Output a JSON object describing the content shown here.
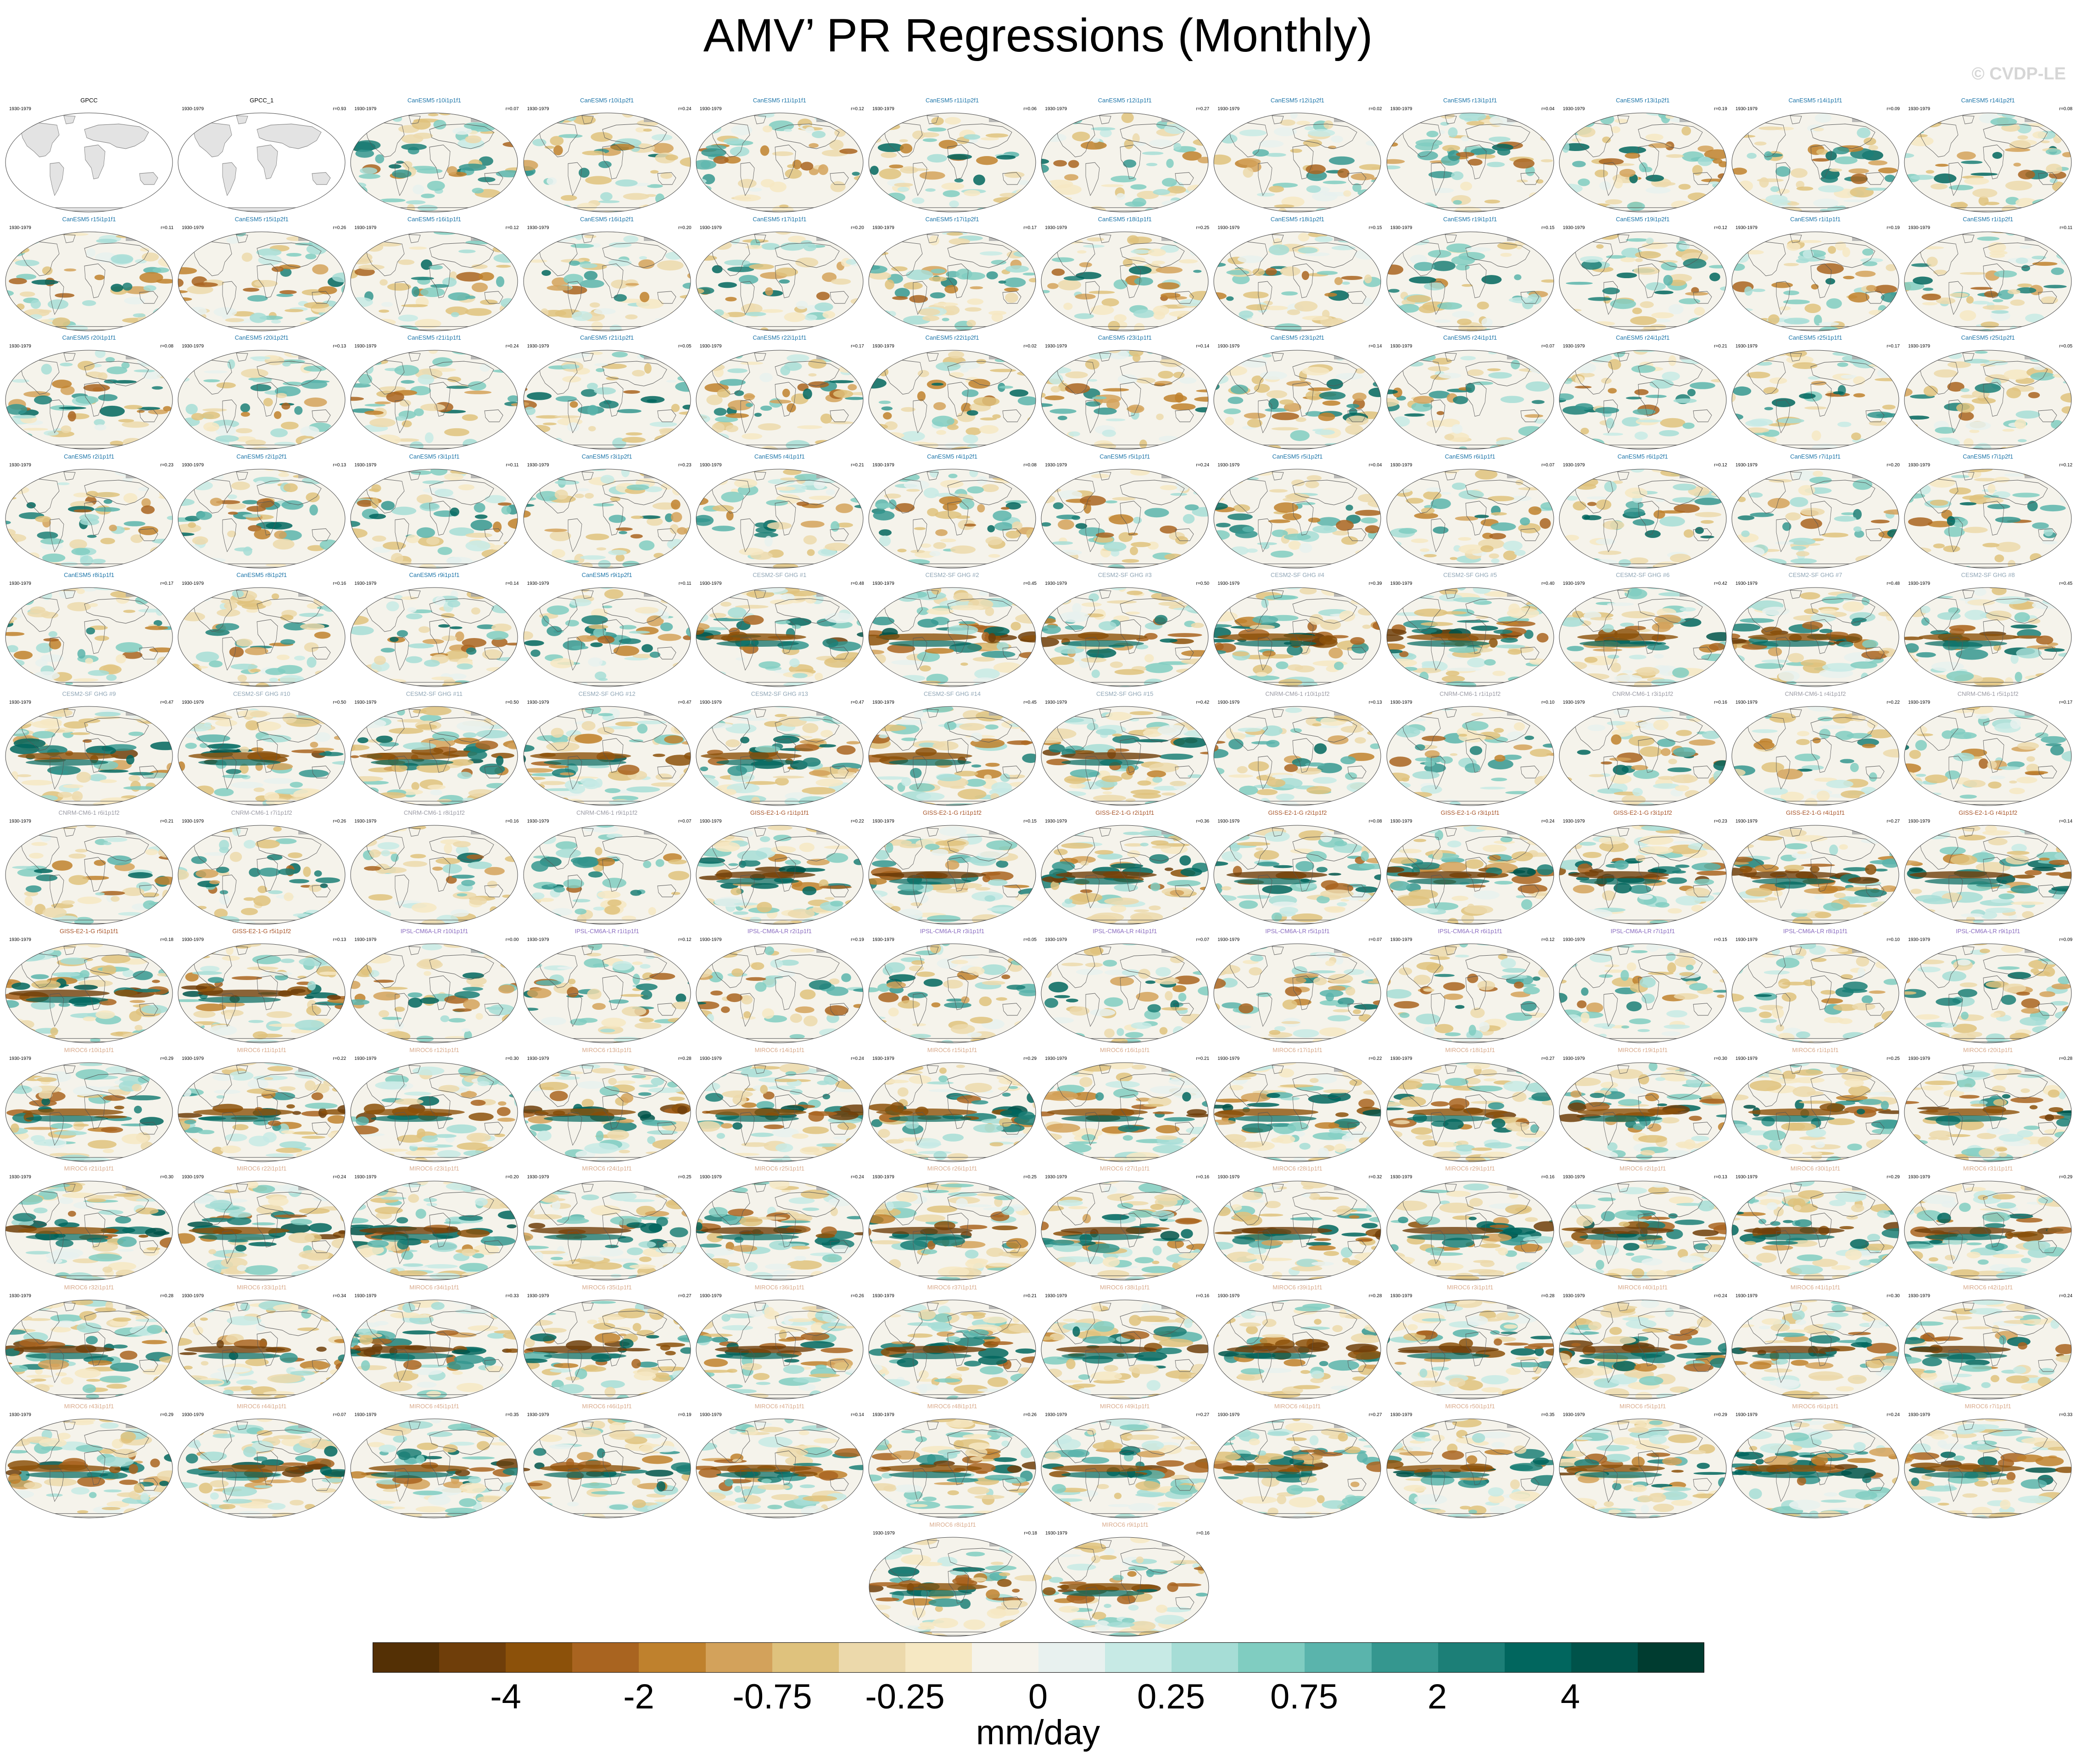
{
  "figure": {
    "title": "AMV’ PR Regressions (Monthly)",
    "watermark": "© CVDP-LE",
    "units": "mm/day",
    "colorbar_labels": [
      "-4",
      "-2",
      "-0.75",
      "-0.25",
      "0",
      "0.25",
      "0.75",
      "2",
      "4"
    ],
    "colorbar_colors": [
      "#543005",
      "#6f3e0a",
      "#8c510a",
      "#a96420",
      "#bf812d",
      "#d3a25b",
      "#dfc27d",
      "#ecd9ab",
      "#f6e8c3",
      "#f5f3eb",
      "#e8f1ef",
      "#c7eae5",
      "#a6ddd6",
      "#80cdc1",
      "#5ab4ac",
      "#35978f",
      "#1c7f77",
      "#01665e",
      "#00534a",
      "#003c30"
    ]
  },
  "colors": {
    "CanESM5": "#1b74a8",
    "CESM2": "#8fa5b5",
    "CNRM": "#9a9aa4",
    "GISS": "#a8552a",
    "IPSL": "#8a6cc0",
    "MIROC6": "#d8a98a",
    "OBS": "#000000"
  },
  "panels": [
    {
      "t": "GPCC",
      "y": "1930-1979",
      "c": "",
      "g": "OBS",
      "m": "obs"
    },
    {
      "t": "GPCC_1",
      "y": "1930-1979",
      "c": "r=0.93",
      "g": "OBS",
      "m": "obs"
    },
    {
      "t": "CanESM5 r10i1p1f1",
      "y": "1930-1979",
      "c": "r=0.07",
      "g": "CanESM5",
      "m": "model"
    },
    {
      "t": "CanESM5 r10i1p2f1",
      "y": "1930-1979",
      "c": "r=0.24",
      "g": "CanESM5",
      "m": "model"
    },
    {
      "t": "CanESM5 r11i1p1f1",
      "y": "1930-1979",
      "c": "r=0.12",
      "g": "CanESM5",
      "m": "model"
    },
    {
      "t": "CanESM5 r11i1p2f1",
      "y": "1930-1979",
      "c": "r=0.06",
      "g": "CanESM5",
      "m": "model"
    },
    {
      "t": "CanESM5 r12i1p1f1",
      "y": "1930-1979",
      "c": "r=0.27",
      "g": "CanESM5",
      "m": "model"
    },
    {
      "t": "CanESM5 r12i1p2f1",
      "y": "1930-1979",
      "c": "r=0.02",
      "g": "CanESM5",
      "m": "model"
    },
    {
      "t": "CanESM5 r13i1p1f1",
      "y": "1930-1979",
      "c": "r=0.04",
      "g": "CanESM5",
      "m": "model"
    },
    {
      "t": "CanESM5 r13i1p2f1",
      "y": "1930-1979",
      "c": "r=0.19",
      "g": "CanESM5",
      "m": "model"
    },
    {
      "t": "CanESM5 r14i1p1f1",
      "y": "1930-1979",
      "c": "r=0.09",
      "g": "CanESM5",
      "m": "model"
    },
    {
      "t": "CanESM5 r14i1p2f1",
      "y": "1930-1979",
      "c": "r=0.08",
      "g": "CanESM5",
      "m": "model"
    },
    {
      "t": "CanESM5 r15i1p1f1",
      "y": "1930-1979",
      "c": "r=0.11",
      "g": "CanESM5",
      "m": "model"
    },
    {
      "t": "CanESM5 r15i1p2f1",
      "y": "1930-1979",
      "c": "r=0.26",
      "g": "CanESM5",
      "m": "model"
    },
    {
      "t": "CanESM5 r16i1p1f1",
      "y": "1930-1979",
      "c": "r=0.12",
      "g": "CanESM5",
      "m": "model"
    },
    {
      "t": "CanESM5 r16i1p2f1",
      "y": "1930-1979",
      "c": "r=0.20",
      "g": "CanESM5",
      "m": "model"
    },
    {
      "t": "CanESM5 r17i1p1f1",
      "y": "1930-1979",
      "c": "r=0.20",
      "g": "CanESM5",
      "m": "model"
    },
    {
      "t": "CanESM5 r17i1p2f1",
      "y": "1930-1979",
      "c": "r=0.17",
      "g": "CanESM5",
      "m": "model"
    },
    {
      "t": "CanESM5 r18i1p1f1",
      "y": "1930-1979",
      "c": "r=0.25",
      "g": "CanESM5",
      "m": "model"
    },
    {
      "t": "CanESM5 r18i1p2f1",
      "y": "1930-1979",
      "c": "r=0.15",
      "g": "CanESM5",
      "m": "model"
    },
    {
      "t": "CanESM5 r19i1p1f1",
      "y": "1930-1979",
      "c": "r=0.15",
      "g": "CanESM5",
      "m": "model"
    },
    {
      "t": "CanESM5 r19i1p2f1",
      "y": "1930-1979",
      "c": "r=0.12",
      "g": "CanESM5",
      "m": "model"
    },
    {
      "t": "CanESM5 r1i1p1f1",
      "y": "1930-1979",
      "c": "r=0.19",
      "g": "CanESM5",
      "m": "model"
    },
    {
      "t": "CanESM5 r1i1p2f1",
      "y": "1930-1979",
      "c": "r=0.11",
      "g": "CanESM5",
      "m": "model"
    },
    {
      "t": "CanESM5 r20i1p1f1",
      "y": "1930-1979",
      "c": "r=0.08",
      "g": "CanESM5",
      "m": "model"
    },
    {
      "t": "CanESM5 r20i1p2f1",
      "y": "1930-1979",
      "c": "r=0.13",
      "g": "CanESM5",
      "m": "model"
    },
    {
      "t": "CanESM5 r21i1p1f1",
      "y": "1930-1979",
      "c": "r=0.24",
      "g": "CanESM5",
      "m": "model"
    },
    {
      "t": "CanESM5 r21i1p2f1",
      "y": "1930-1979",
      "c": "r=0.05",
      "g": "CanESM5",
      "m": "model"
    },
    {
      "t": "CanESM5 r22i1p1f1",
      "y": "1930-1979",
      "c": "r=0.17",
      "g": "CanESM5",
      "m": "model"
    },
    {
      "t": "CanESM5 r22i1p2f1",
      "y": "1930-1979",
      "c": "r=0.02",
      "g": "CanESM5",
      "m": "model"
    },
    {
      "t": "CanESM5 r23i1p1f1",
      "y": "1930-1979",
      "c": "r=0.14",
      "g": "CanESM5",
      "m": "model"
    },
    {
      "t": "CanESM5 r23i1p2f1",
      "y": "1930-1979",
      "c": "r=0.14",
      "g": "CanESM5",
      "m": "model"
    },
    {
      "t": "CanESM5 r24i1p1f1",
      "y": "1930-1979",
      "c": "r=0.07",
      "g": "CanESM5",
      "m": "model"
    },
    {
      "t": "CanESM5 r24i1p2f1",
      "y": "1930-1979",
      "c": "r=0.21",
      "g": "CanESM5",
      "m": "model"
    },
    {
      "t": "CanESM5 r25i1p1f1",
      "y": "1930-1979",
      "c": "r=0.17",
      "g": "CanESM5",
      "m": "model"
    },
    {
      "t": "CanESM5 r25i1p2f1",
      "y": "1930-1979",
      "c": "r=0.05",
      "g": "CanESM5",
      "m": "model"
    },
    {
      "t": "CanESM5 r2i1p1f1",
      "y": "1930-1979",
      "c": "r=0.23",
      "g": "CanESM5",
      "m": "model"
    },
    {
      "t": "CanESM5 r2i1p2f1",
      "y": "1930-1979",
      "c": "r=0.13",
      "g": "CanESM5",
      "m": "model"
    },
    {
      "t": "CanESM5 r3i1p1f1",
      "y": "1930-1979",
      "c": "r=0.11",
      "g": "CanESM5",
      "m": "model"
    },
    {
      "t": "CanESM5 r3i1p2f1",
      "y": "1930-1979",
      "c": "r=0.23",
      "g": "CanESM5",
      "m": "model"
    },
    {
      "t": "CanESM5 r4i1p1f1",
      "y": "1930-1979",
      "c": "r=0.21",
      "g": "CanESM5",
      "m": "model"
    },
    {
      "t": "CanESM5 r4i1p2f1",
      "y": "1930-1979",
      "c": "r=0.08",
      "g": "CanESM5",
      "m": "model"
    },
    {
      "t": "CanESM5 r5i1p1f1",
      "y": "1930-1979",
      "c": "r=0.24",
      "g": "CanESM5",
      "m": "model"
    },
    {
      "t": "CanESM5 r5i1p2f1",
      "y": "1930-1979",
      "c": "r=0.04",
      "g": "CanESM5",
      "m": "model"
    },
    {
      "t": "CanESM5 r6i1p1f1",
      "y": "1930-1979",
      "c": "r=0.07",
      "g": "CanESM5",
      "m": "model"
    },
    {
      "t": "CanESM5 r6i1p2f1",
      "y": "1930-1979",
      "c": "r=0.12",
      "g": "CanESM5",
      "m": "model"
    },
    {
      "t": "CanESM5 r7i1p1f1",
      "y": "1930-1979",
      "c": "r=0.20",
      "g": "CanESM5",
      "m": "model"
    },
    {
      "t": "CanESM5 r7i1p2f1",
      "y": "1930-1979",
      "c": "r=0.12",
      "g": "CanESM5",
      "m": "model"
    },
    {
      "t": "CanESM5 r8i1p1f1",
      "y": "1930-1979",
      "c": "r=0.17",
      "g": "CanESM5",
      "m": "model"
    },
    {
      "t": "CanESM5 r8i1p2f1",
      "y": "1930-1979",
      "c": "r=0.16",
      "g": "CanESM5",
      "m": "model"
    },
    {
      "t": "CanESM5 r9i1p1f1",
      "y": "1930-1979",
      "c": "r=0.14",
      "g": "CanESM5",
      "m": "model"
    },
    {
      "t": "CanESM5 r9i1p2f1",
      "y": "1930-1979",
      "c": "r=0.11",
      "g": "CanESM5",
      "m": "model"
    },
    {
      "t": "CESM2-SF GHG #1",
      "y": "1930-1979",
      "c": "r=0.48",
      "g": "CESM2",
      "m": "strong"
    },
    {
      "t": "CESM2-SF GHG #2",
      "y": "1930-1979",
      "c": "r=0.45",
      "g": "CESM2",
      "m": "strong"
    },
    {
      "t": "CESM2-SF GHG #3",
      "y": "1930-1979",
      "c": "r=0.50",
      "g": "CESM2",
      "m": "strong"
    },
    {
      "t": "CESM2-SF GHG #4",
      "y": "1930-1979",
      "c": "r=0.39",
      "g": "CESM2",
      "m": "strong"
    },
    {
      "t": "CESM2-SF GHG #5",
      "y": "1930-1979",
      "c": "r=0.40",
      "g": "CESM2",
      "m": "strong"
    },
    {
      "t": "CESM2-SF GHG #6",
      "y": "1930-1979",
      "c": "r=0.42",
      "g": "CESM2",
      "m": "strong"
    },
    {
      "t": "CESM2-SF GHG #7",
      "y": "1930-1979",
      "c": "r=0.48",
      "g": "CESM2",
      "m": "strong"
    },
    {
      "t": "CESM2-SF GHG #8",
      "y": "1930-1979",
      "c": "r=0.45",
      "g": "CESM2",
      "m": "strong"
    },
    {
      "t": "CESM2-SF GHG #9",
      "y": "1930-1979",
      "c": "r=0.47",
      "g": "CESM2",
      "m": "strong"
    },
    {
      "t": "CESM2-SF GHG #10",
      "y": "1930-1979",
      "c": "r=0.50",
      "g": "CESM2",
      "m": "strong"
    },
    {
      "t": "CESM2-SF GHG #11",
      "y": "1930-1979",
      "c": "r=0.50",
      "g": "CESM2",
      "m": "strong"
    },
    {
      "t": "CESM2-SF GHG #12",
      "y": "1930-1979",
      "c": "r=0.47",
      "g": "CESM2",
      "m": "strong"
    },
    {
      "t": "CESM2-SF GHG #13",
      "y": "1930-1979",
      "c": "r=0.47",
      "g": "CESM2",
      "m": "strong"
    },
    {
      "t": "CESM2-SF GHG #14",
      "y": "1930-1979",
      "c": "r=0.45",
      "g": "CESM2",
      "m": "strong"
    },
    {
      "t": "CESM2-SF GHG #15",
      "y": "1930-1979",
      "c": "r=0.42",
      "g": "CESM2",
      "m": "strong"
    },
    {
      "t": "CNRM-CM6-1 r10i1p1f2",
      "y": "1930-1979",
      "c": "r=0.13",
      "g": "CNRM",
      "m": "model"
    },
    {
      "t": "CNRM-CM6-1 r1i1p1f2",
      "y": "1930-1979",
      "c": "r=0.10",
      "g": "CNRM",
      "m": "model"
    },
    {
      "t": "CNRM-CM6-1 r3i1p1f2",
      "y": "1930-1979",
      "c": "r=0.16",
      "g": "CNRM",
      "m": "model"
    },
    {
      "t": "CNRM-CM6-1 r4i1p1f2",
      "y": "1930-1979",
      "c": "r=0.22",
      "g": "CNRM",
      "m": "model"
    },
    {
      "t": "CNRM-CM6-1 r5i1p1f2",
      "y": "1930-1979",
      "c": "r=0.17",
      "g": "CNRM",
      "m": "model"
    },
    {
      "t": "CNRM-CM6-1 r6i1p1f2",
      "y": "1930-1979",
      "c": "r=0.21",
      "g": "CNRM",
      "m": "model"
    },
    {
      "t": "CNRM-CM6-1 r7i1p1f2",
      "y": "1930-1979",
      "c": "r=0.26",
      "g": "CNRM",
      "m": "model"
    },
    {
      "t": "CNRM-CM6-1 r8i1p1f2",
      "y": "1930-1979",
      "c": "r=0.16",
      "g": "CNRM",
      "m": "model"
    },
    {
      "t": "CNRM-CM6-1 r9i1p1f2",
      "y": "1930-1979",
      "c": "r=0.07",
      "g": "CNRM",
      "m": "model"
    },
    {
      "t": "GISS-E2-1-G r1i1p1f1",
      "y": "1930-1979",
      "c": "r=0.22",
      "g": "GISS",
      "m": "strong"
    },
    {
      "t": "GISS-E2-1-G r1i1p1f2",
      "y": "1930-1979",
      "c": "r=0.15",
      "g": "GISS",
      "m": "strong"
    },
    {
      "t": "GISS-E2-1-G r2i1p1f1",
      "y": "1930-1979",
      "c": "r=0.36",
      "g": "GISS",
      "m": "strong"
    },
    {
      "t": "GISS-E2-1-G r2i1p1f2",
      "y": "1930-1979",
      "c": "r=0.08",
      "g": "GISS",
      "m": "strong"
    },
    {
      "t": "GISS-E2-1-G r3i1p1f1",
      "y": "1930-1979",
      "c": "r=0.24",
      "g": "GISS",
      "m": "strong"
    },
    {
      "t": "GISS-E2-1-G r3i1p1f2",
      "y": "1930-1979",
      "c": "r=0.23",
      "g": "GISS",
      "m": "strong"
    },
    {
      "t": "GISS-E2-1-G r4i1p1f1",
      "y": "1930-1979",
      "c": "r=0.27",
      "g": "GISS",
      "m": "strong"
    },
    {
      "t": "GISS-E2-1-G r4i1p1f2",
      "y": "1930-1979",
      "c": "r=0.14",
      "g": "GISS",
      "m": "strong"
    },
    {
      "t": "GISS-E2-1-G r5i1p1f1",
      "y": "1930-1979",
      "c": "r=0.18",
      "g": "GISS",
      "m": "strong"
    },
    {
      "t": "GISS-E2-1-G r5i1p1f2",
      "y": "1930-1979",
      "c": "r=0.13",
      "g": "GISS",
      "m": "strong"
    },
    {
      "t": "IPSL-CM6A-LR r10i1p1f1",
      "y": "1930-1979",
      "c": "r=0.00",
      "g": "IPSL",
      "m": "model"
    },
    {
      "t": "IPSL-CM6A-LR r1i1p1f1",
      "y": "1930-1979",
      "c": "r=0.12",
      "g": "IPSL",
      "m": "model"
    },
    {
      "t": "IPSL-CM6A-LR r2i1p1f1",
      "y": "1930-1979",
      "c": "r=0.19",
      "g": "IPSL",
      "m": "model"
    },
    {
      "t": "IPSL-CM6A-LR r3i1p1f1",
      "y": "1930-1979",
      "c": "r=0.05",
      "g": "IPSL",
      "m": "model"
    },
    {
      "t": "IPSL-CM6A-LR r4i1p1f1",
      "y": "1930-1979",
      "c": "r=0.07",
      "g": "IPSL",
      "m": "model"
    },
    {
      "t": "IPSL-CM6A-LR r5i1p1f1",
      "y": "1930-1979",
      "c": "r=0.07",
      "g": "IPSL",
      "m": "model"
    },
    {
      "t": "IPSL-CM6A-LR r6i1p1f1",
      "y": "1930-1979",
      "c": "r=0.12",
      "g": "IPSL",
      "m": "model"
    },
    {
      "t": "IPSL-CM6A-LR r7i1p1f1",
      "y": "1930-1979",
      "c": "r=0.15",
      "g": "IPSL",
      "m": "model"
    },
    {
      "t": "IPSL-CM6A-LR r8i1p1f1",
      "y": "1930-1979",
      "c": "r=0.10",
      "g": "IPSL",
      "m": "model"
    },
    {
      "t": "IPSL-CM6A-LR r9i1p1f1",
      "y": "1930-1979",
      "c": "r=0.09",
      "g": "IPSL",
      "m": "model"
    },
    {
      "t": "MIROC6 r10i1p1f1",
      "y": "1930-1979",
      "c": "r=0.29",
      "g": "MIROC6",
      "m": "strong"
    },
    {
      "t": "MIROC6 r11i1p1f1",
      "y": "1930-1979",
      "c": "r=0.22",
      "g": "MIROC6",
      "m": "strong"
    },
    {
      "t": "MIROC6 r12i1p1f1",
      "y": "1930-1979",
      "c": "r=0.30",
      "g": "MIROC6",
      "m": "strong"
    },
    {
      "t": "MIROC6 r13i1p1f1",
      "y": "1930-1979",
      "c": "r=0.28",
      "g": "MIROC6",
      "m": "strong"
    },
    {
      "t": "MIROC6 r14i1p1f1",
      "y": "1930-1979",
      "c": "r=0.24",
      "g": "MIROC6",
      "m": "strong"
    },
    {
      "t": "MIROC6 r15i1p1f1",
      "y": "1930-1979",
      "c": "r=0.29",
      "g": "MIROC6",
      "m": "strong"
    },
    {
      "t": "MIROC6 r16i1p1f1",
      "y": "1930-1979",
      "c": "r=0.21",
      "g": "MIROC6",
      "m": "strong"
    },
    {
      "t": "MIROC6 r17i1p1f1",
      "y": "1930-1979",
      "c": "r=0.22",
      "g": "MIROC6",
      "m": "strong"
    },
    {
      "t": "MIROC6 r18i1p1f1",
      "y": "1930-1979",
      "c": "r=0.27",
      "g": "MIROC6",
      "m": "strong"
    },
    {
      "t": "MIROC6 r19i1p1f1",
      "y": "1930-1979",
      "c": "r=0.30",
      "g": "MIROC6",
      "m": "strong"
    },
    {
      "t": "MIROC6 r1i1p1f1",
      "y": "1930-1979",
      "c": "r=0.25",
      "g": "MIROC6",
      "m": "strong"
    },
    {
      "t": "MIROC6 r20i1p1f1",
      "y": "1930-1979",
      "c": "r=0.28",
      "g": "MIROC6",
      "m": "strong"
    },
    {
      "t": "MIROC6 r21i1p1f1",
      "y": "1930-1979",
      "c": "r=0.30",
      "g": "MIROC6",
      "m": "strong"
    },
    {
      "t": "MIROC6 r22i1p1f1",
      "y": "1930-1979",
      "c": "r=0.24",
      "g": "MIROC6",
      "m": "strong"
    },
    {
      "t": "MIROC6 r23i1p1f1",
      "y": "1930-1979",
      "c": "r=0.20",
      "g": "MIROC6",
      "m": "strong"
    },
    {
      "t": "MIROC6 r24i1p1f1",
      "y": "1930-1979",
      "c": "r=0.25",
      "g": "MIROC6",
      "m": "strong"
    },
    {
      "t": "MIROC6 r25i1p1f1",
      "y": "1930-1979",
      "c": "r=0.24",
      "g": "MIROC6",
      "m": "strong"
    },
    {
      "t": "MIROC6 r26i1p1f1",
      "y": "1930-1979",
      "c": "r=0.25",
      "g": "MIROC6",
      "m": "strong"
    },
    {
      "t": "MIROC6 r27i1p1f1",
      "y": "1930-1979",
      "c": "r=0.16",
      "g": "MIROC6",
      "m": "strong"
    },
    {
      "t": "MIROC6 r28i1p1f1",
      "y": "1930-1979",
      "c": "r=0.32",
      "g": "MIROC6",
      "m": "strong"
    },
    {
      "t": "MIROC6 r29i1p1f1",
      "y": "1930-1979",
      "c": "r=0.16",
      "g": "MIROC6",
      "m": "strong"
    },
    {
      "t": "MIROC6 r2i1p1f1",
      "y": "1930-1979",
      "c": "r=0.13",
      "g": "MIROC6",
      "m": "strong"
    },
    {
      "t": "MIROC6 r30i1p1f1",
      "y": "1930-1979",
      "c": "r=0.29",
      "g": "MIROC6",
      "m": "strong"
    },
    {
      "t": "MIROC6 r31i1p1f1",
      "y": "1930-1979",
      "c": "r=0.29",
      "g": "MIROC6",
      "m": "strong"
    },
    {
      "t": "MIROC6 r32i1p1f1",
      "y": "1930-1979",
      "c": "r=0.28",
      "g": "MIROC6",
      "m": "strong"
    },
    {
      "t": "MIROC6 r33i1p1f1",
      "y": "1930-1979",
      "c": "r=0.34",
      "g": "MIROC6",
      "m": "strong"
    },
    {
      "t": "MIROC6 r34i1p1f1",
      "y": "1930-1979",
      "c": "r=0.33",
      "g": "MIROC6",
      "m": "strong"
    },
    {
      "t": "MIROC6 r35i1p1f1",
      "y": "1930-1979",
      "c": "r=0.27",
      "g": "MIROC6",
      "m": "strong"
    },
    {
      "t": "MIROC6 r36i1p1f1",
      "y": "1930-1979",
      "c": "r=0.26",
      "g": "MIROC6",
      "m": "strong"
    },
    {
      "t": "MIROC6 r37i1p1f1",
      "y": "1930-1979",
      "c": "r=0.21",
      "g": "MIROC6",
      "m": "strong"
    },
    {
      "t": "MIROC6 r38i1p1f1",
      "y": "1930-1979",
      "c": "r=0.16",
      "g": "MIROC6",
      "m": "strong"
    },
    {
      "t": "MIROC6 r39i1p1f1",
      "y": "1930-1979",
      "c": "r=0.28",
      "g": "MIROC6",
      "m": "strong"
    },
    {
      "t": "MIROC6 r3i1p1f1",
      "y": "1930-1979",
      "c": "r=0.28",
      "g": "MIROC6",
      "m": "strong"
    },
    {
      "t": "MIROC6 r40i1p1f1",
      "y": "1930-1979",
      "c": "r=0.24",
      "g": "MIROC6",
      "m": "strong"
    },
    {
      "t": "MIROC6 r41i1p1f1",
      "y": "1930-1979",
      "c": "r=0.30",
      "g": "MIROC6",
      "m": "strong"
    },
    {
      "t": "MIROC6 r42i1p1f1",
      "y": "1930-1979",
      "c": "r=0.24",
      "g": "MIROC6",
      "m": "strong"
    },
    {
      "t": "MIROC6 r43i1p1f1",
      "y": "1930-1979",
      "c": "r=0.29",
      "g": "MIROC6",
      "m": "strong"
    },
    {
      "t": "MIROC6 r44i1p1f1",
      "y": "1930-1979",
      "c": "r=0.07",
      "g": "MIROC6",
      "m": "strong"
    },
    {
      "t": "MIROC6 r45i1p1f1",
      "y": "1930-1979",
      "c": "r=0.35",
      "g": "MIROC6",
      "m": "strong"
    },
    {
      "t": "MIROC6 r46i1p1f1",
      "y": "1930-1979",
      "c": "r=0.19",
      "g": "MIROC6",
      "m": "strong"
    },
    {
      "t": "MIROC6 r47i1p1f1",
      "y": "1930-1979",
      "c": "r=0.14",
      "g": "MIROC6",
      "m": "strong"
    },
    {
      "t": "MIROC6 r48i1p1f1",
      "y": "1930-1979",
      "c": "r=0.26",
      "g": "MIROC6",
      "m": "strong"
    },
    {
      "t": "MIROC6 r49i1p1f1",
      "y": "1930-1979",
      "c": "r=0.27",
      "g": "MIROC6",
      "m": "strong"
    },
    {
      "t": "MIROC6 r4i1p1f1",
      "y": "1930-1979",
      "c": "r=0.27",
      "g": "MIROC6",
      "m": "strong"
    },
    {
      "t": "MIROC6 r50i1p1f1",
      "y": "1930-1979",
      "c": "r=0.35",
      "g": "MIROC6",
      "m": "strong"
    },
    {
      "t": "MIROC6 r5i1p1f1",
      "y": "1930-1979",
      "c": "r=0.29",
      "g": "MIROC6",
      "m": "strong"
    },
    {
      "t": "MIROC6 r6i1p1f1",
      "y": "1930-1979",
      "c": "r=0.24",
      "g": "MIROC6",
      "m": "strong"
    },
    {
      "t": "MIROC6 r7i1p1f1",
      "y": "1930-1979",
      "c": "r=0.33",
      "g": "MIROC6",
      "m": "strong"
    },
    {
      "t": "MIROC6 r8i1p1f1",
      "y": "1930-1979",
      "c": "r=0.18",
      "g": "MIROC6",
      "m": "strong"
    },
    {
      "t": "MIROC6 r9i1p1f1",
      "y": "1930-1979",
      "c": "r=0.16",
      "g": "MIROC6",
      "m": "strong"
    }
  ]
}
